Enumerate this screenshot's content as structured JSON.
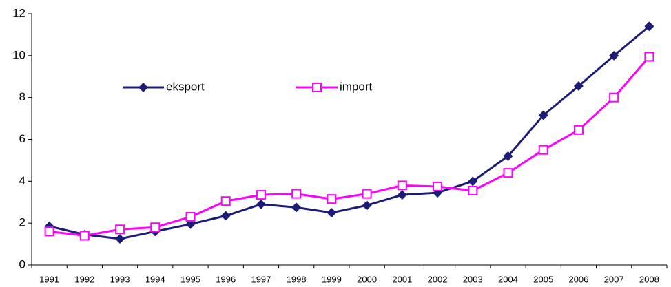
{
  "chart_data": {
    "type": "line",
    "categories": [
      "1991",
      "1992",
      "1993",
      "1994",
      "1995",
      "1996",
      "1997",
      "1998",
      "1999",
      "2000",
      "2001",
      "2002",
      "2003",
      "2004",
      "2005",
      "2006",
      "2007",
      "2008"
    ],
    "series": [
      {
        "name": "eksport",
        "color": "#1c1c78",
        "marker": "diamond",
        "values": [
          1.85,
          1.45,
          1.25,
          1.6,
          1.95,
          2.35,
          2.9,
          2.75,
          2.5,
          2.85,
          3.35,
          3.45,
          4.0,
          5.2,
          7.15,
          8.55,
          10.0,
          11.4
        ]
      },
      {
        "name": "import",
        "color": "#ff00ff",
        "marker": "square",
        "values": [
          1.6,
          1.4,
          1.7,
          1.8,
          2.3,
          3.05,
          3.35,
          3.4,
          3.15,
          3.4,
          3.8,
          3.75,
          3.55,
          4.4,
          5.5,
          6.45,
          8.0,
          9.95
        ]
      }
    ],
    "ylim": [
      0,
      12
    ],
    "yticks": [
      0,
      2,
      4,
      6,
      8,
      10,
      12
    ],
    "grid": false,
    "legend": "upper left"
  }
}
